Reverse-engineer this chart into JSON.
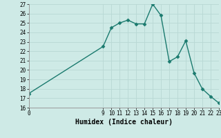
{
  "x": [
    0,
    9,
    10,
    11,
    12,
    13,
    14,
    15,
    16,
    17,
    18,
    19,
    20,
    21,
    22,
    23
  ],
  "y": [
    17.5,
    22.5,
    24.5,
    25.0,
    25.3,
    24.9,
    24.9,
    27.0,
    25.8,
    20.9,
    21.4,
    23.1,
    19.7,
    18.0,
    17.2,
    16.5
  ],
  "line_color": "#1a7a6e",
  "marker": "D",
  "marker_size": 2.5,
  "bg_color": "#ceeae6",
  "grid_color_major": "#b8d8d4",
  "grid_color_minor": "#d0e8e4",
  "xlabel": "Humidex (Indice chaleur)",
  "xlim": [
    0,
    23
  ],
  "ylim": [
    16,
    27
  ],
  "xticks": [
    0,
    9,
    10,
    11,
    12,
    13,
    14,
    15,
    16,
    17,
    18,
    19,
    20,
    21,
    22,
    23
  ],
  "yticks": [
    16,
    17,
    18,
    19,
    20,
    21,
    22,
    23,
    24,
    25,
    26,
    27
  ],
  "tick_fontsize": 5.5,
  "xlabel_fontsize": 7.0,
  "linewidth": 1.0
}
